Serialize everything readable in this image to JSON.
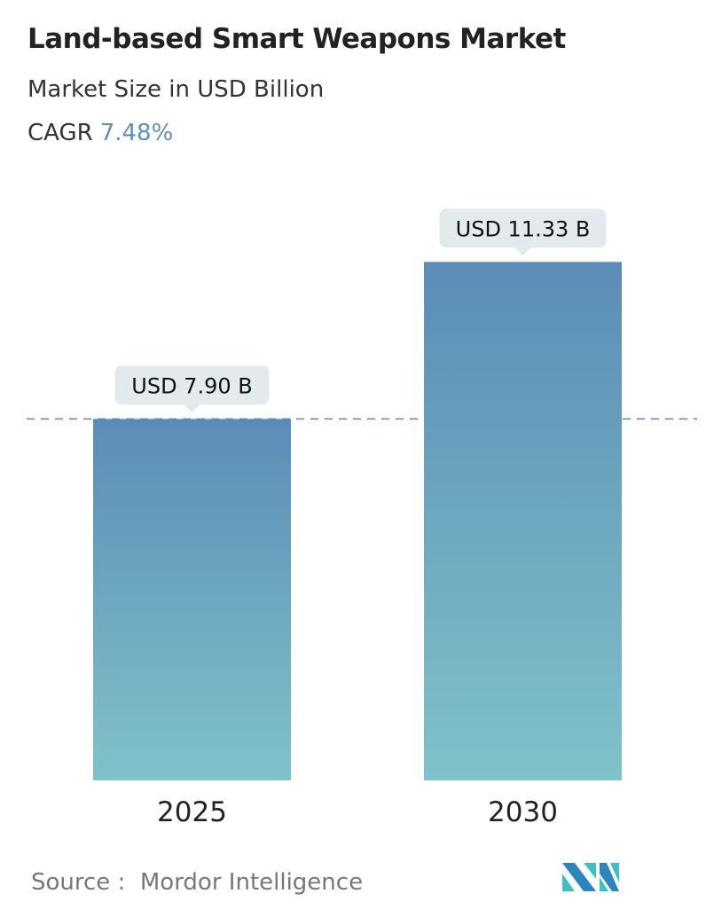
{
  "header": {
    "title": "Land-based Smart Weapons Market",
    "subtitle": "Market Size in USD Billion",
    "cagr_label": "CAGR",
    "cagr_value": "7.48%"
  },
  "chart_data": {
    "type": "bar",
    "categories": [
      "2025",
      "2030"
    ],
    "values": [
      7.9,
      11.33
    ],
    "data_labels": [
      "USD 7.90 B",
      "USD 11.33 B"
    ],
    "unit": "USD Billion",
    "reference_line": 7.9,
    "grid": false,
    "colors": {
      "bar_top": "#5b8cb6",
      "bar_bottom": "#80c2c9",
      "label_bg": "#e2eaee",
      "dashed_line": "#5d86a8"
    }
  },
  "footer": {
    "source_label": "Source :",
    "source_value": "Mordor Intelligence",
    "logo": "Mordor Intelligence logo"
  }
}
